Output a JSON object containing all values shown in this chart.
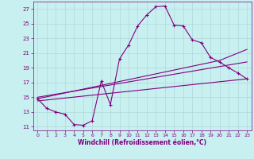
{
  "xlabel": "Windchill (Refroidissement éolien,°C)",
  "background_color": "#c8f0f0",
  "line_color": "#800080",
  "grid_color": "#b0d8d8",
  "xlim": [
    -0.5,
    23.5
  ],
  "ylim": [
    10.5,
    28.0
  ],
  "yticks": [
    11,
    13,
    15,
    17,
    19,
    21,
    23,
    25,
    27
  ],
  "xticks": [
    0,
    1,
    2,
    3,
    4,
    5,
    6,
    7,
    8,
    9,
    10,
    11,
    12,
    13,
    14,
    15,
    16,
    17,
    18,
    19,
    20,
    21,
    22,
    23
  ],
  "series1_x": [
    0,
    1,
    2,
    3,
    4,
    5,
    6,
    7,
    8,
    9,
    10,
    11,
    12,
    13,
    14,
    15,
    16,
    17,
    18,
    19,
    20,
    21,
    22,
    23
  ],
  "series1_y": [
    14.8,
    13.5,
    13.0,
    12.7,
    11.3,
    11.2,
    11.8,
    17.2,
    14.0,
    20.2,
    22.1,
    24.7,
    26.2,
    27.3,
    27.4,
    24.8,
    24.7,
    22.8,
    22.4,
    20.4,
    19.8,
    19.0,
    18.3,
    17.5
  ],
  "series2_x": [
    0,
    20,
    23
  ],
  "series2_y": [
    14.8,
    20.0,
    21.5
  ],
  "series3_x": [
    0,
    23
  ],
  "series3_y": [
    15.0,
    19.8
  ],
  "series4_x": [
    0,
    23
  ],
  "series4_y": [
    14.5,
    17.5
  ]
}
